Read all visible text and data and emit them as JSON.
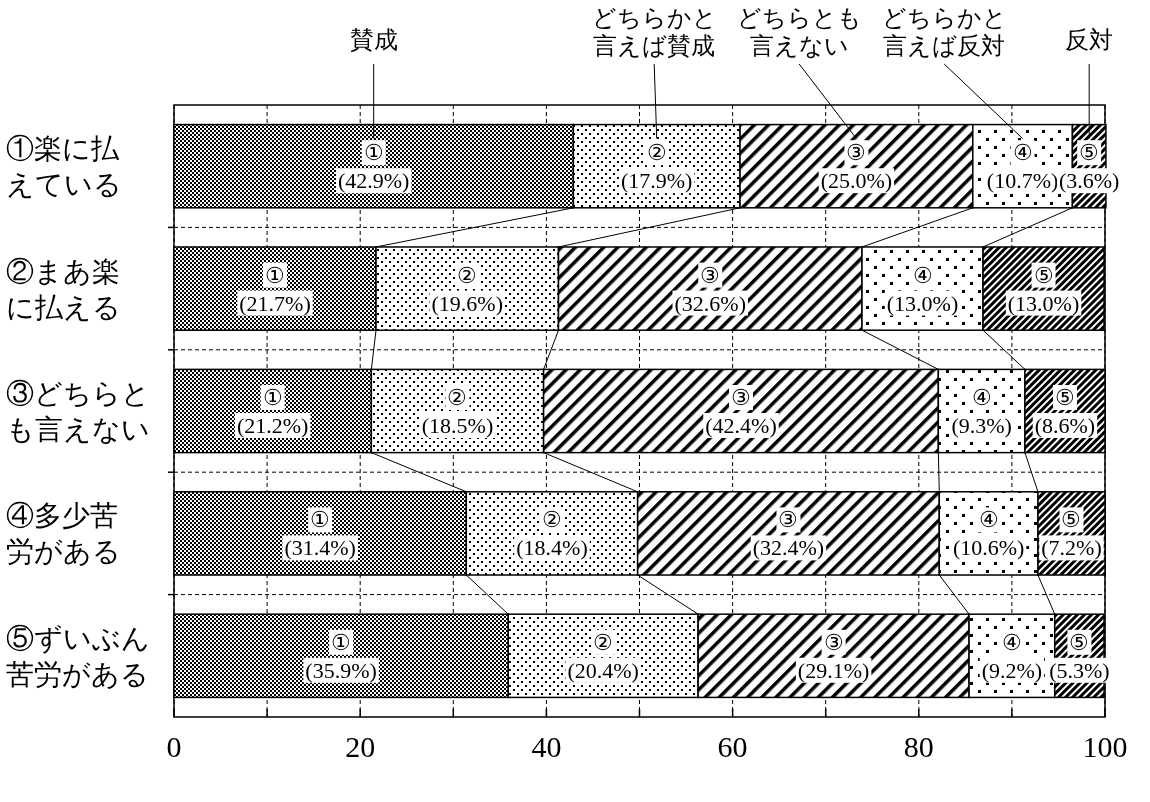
{
  "chart_data": {
    "type": "bar",
    "orientation": "horizontal",
    "stacked": true,
    "legend": "top",
    "grid": true,
    "categories": [
      "①楽に払えている",
      "②まあ楽に払える",
      "③どちらとも言えない",
      "④多少苦労がある",
      "⑤ずいぶん苦労がある"
    ],
    "xlim": [
      0,
      100
    ],
    "xticks": [
      0,
      {
        "value": 10,
        "label": null
      },
      20,
      {
        "value": 30,
        "label": null
      },
      40,
      {
        "value": 50,
        "label": null
      },
      60,
      {
        "value": 70,
        "label": null
      },
      80,
      {
        "value": 90,
        "label": null
      },
      100
    ],
    "series": [
      {
        "name": "賛成",
        "color": "#000000",
        "values": [
          42.9,
          21.7,
          21.2,
          31.4,
          35.9
        ],
        "value_labels": [
          "①\n(42.9%)",
          "①\n(21.7%)",
          "①\n(21.2%)",
          "①\n(31.4%)",
          "①\n(35.9%)"
        ]
      },
      {
        "name": "どちらかと言えば賛成",
        "color": "#000000",
        "values": [
          17.9,
          19.6,
          18.5,
          18.4,
          20.4
        ],
        "value_labels": [
          "②\n(17.9%)",
          "②\n(19.6%)",
          "②\n(18.5%)",
          "②\n(18.4%)",
          "②\n(20.4%)"
        ]
      },
      {
        "name": "どちらとも言えない",
        "color": "#000000",
        "values": [
          25.0,
          32.6,
          42.4,
          32.4,
          29.1
        ],
        "value_labels": [
          "③\n(25.0%)",
          "③\n(32.6%)",
          "③\n(42.4%)",
          "③\n(32.4%)",
          "③\n(29.1%)"
        ]
      },
      {
        "name": "どちらかと言えば反対",
        "color": "#000000",
        "values": [
          10.7,
          13.0,
          9.3,
          10.6,
          9.2
        ],
        "value_labels": [
          "④\n(10.7%)",
          "④\n(13.0%)",
          "④\n(9.3%)",
          "④\n(10.6%)",
          "④\n(9.2%)"
        ]
      },
      {
        "name": "反対",
        "color": "#000000",
        "values": [
          3.6,
          13.0,
          8.6,
          7.2,
          5.3
        ],
        "value_labels": [
          "⑤\n(3.6%)",
          "⑤\n(13.0%)",
          "⑤\n(8.6%)",
          "⑤\n(7.2%)",
          "⑤\n(5.3%)"
        ]
      }
    ]
  }
}
